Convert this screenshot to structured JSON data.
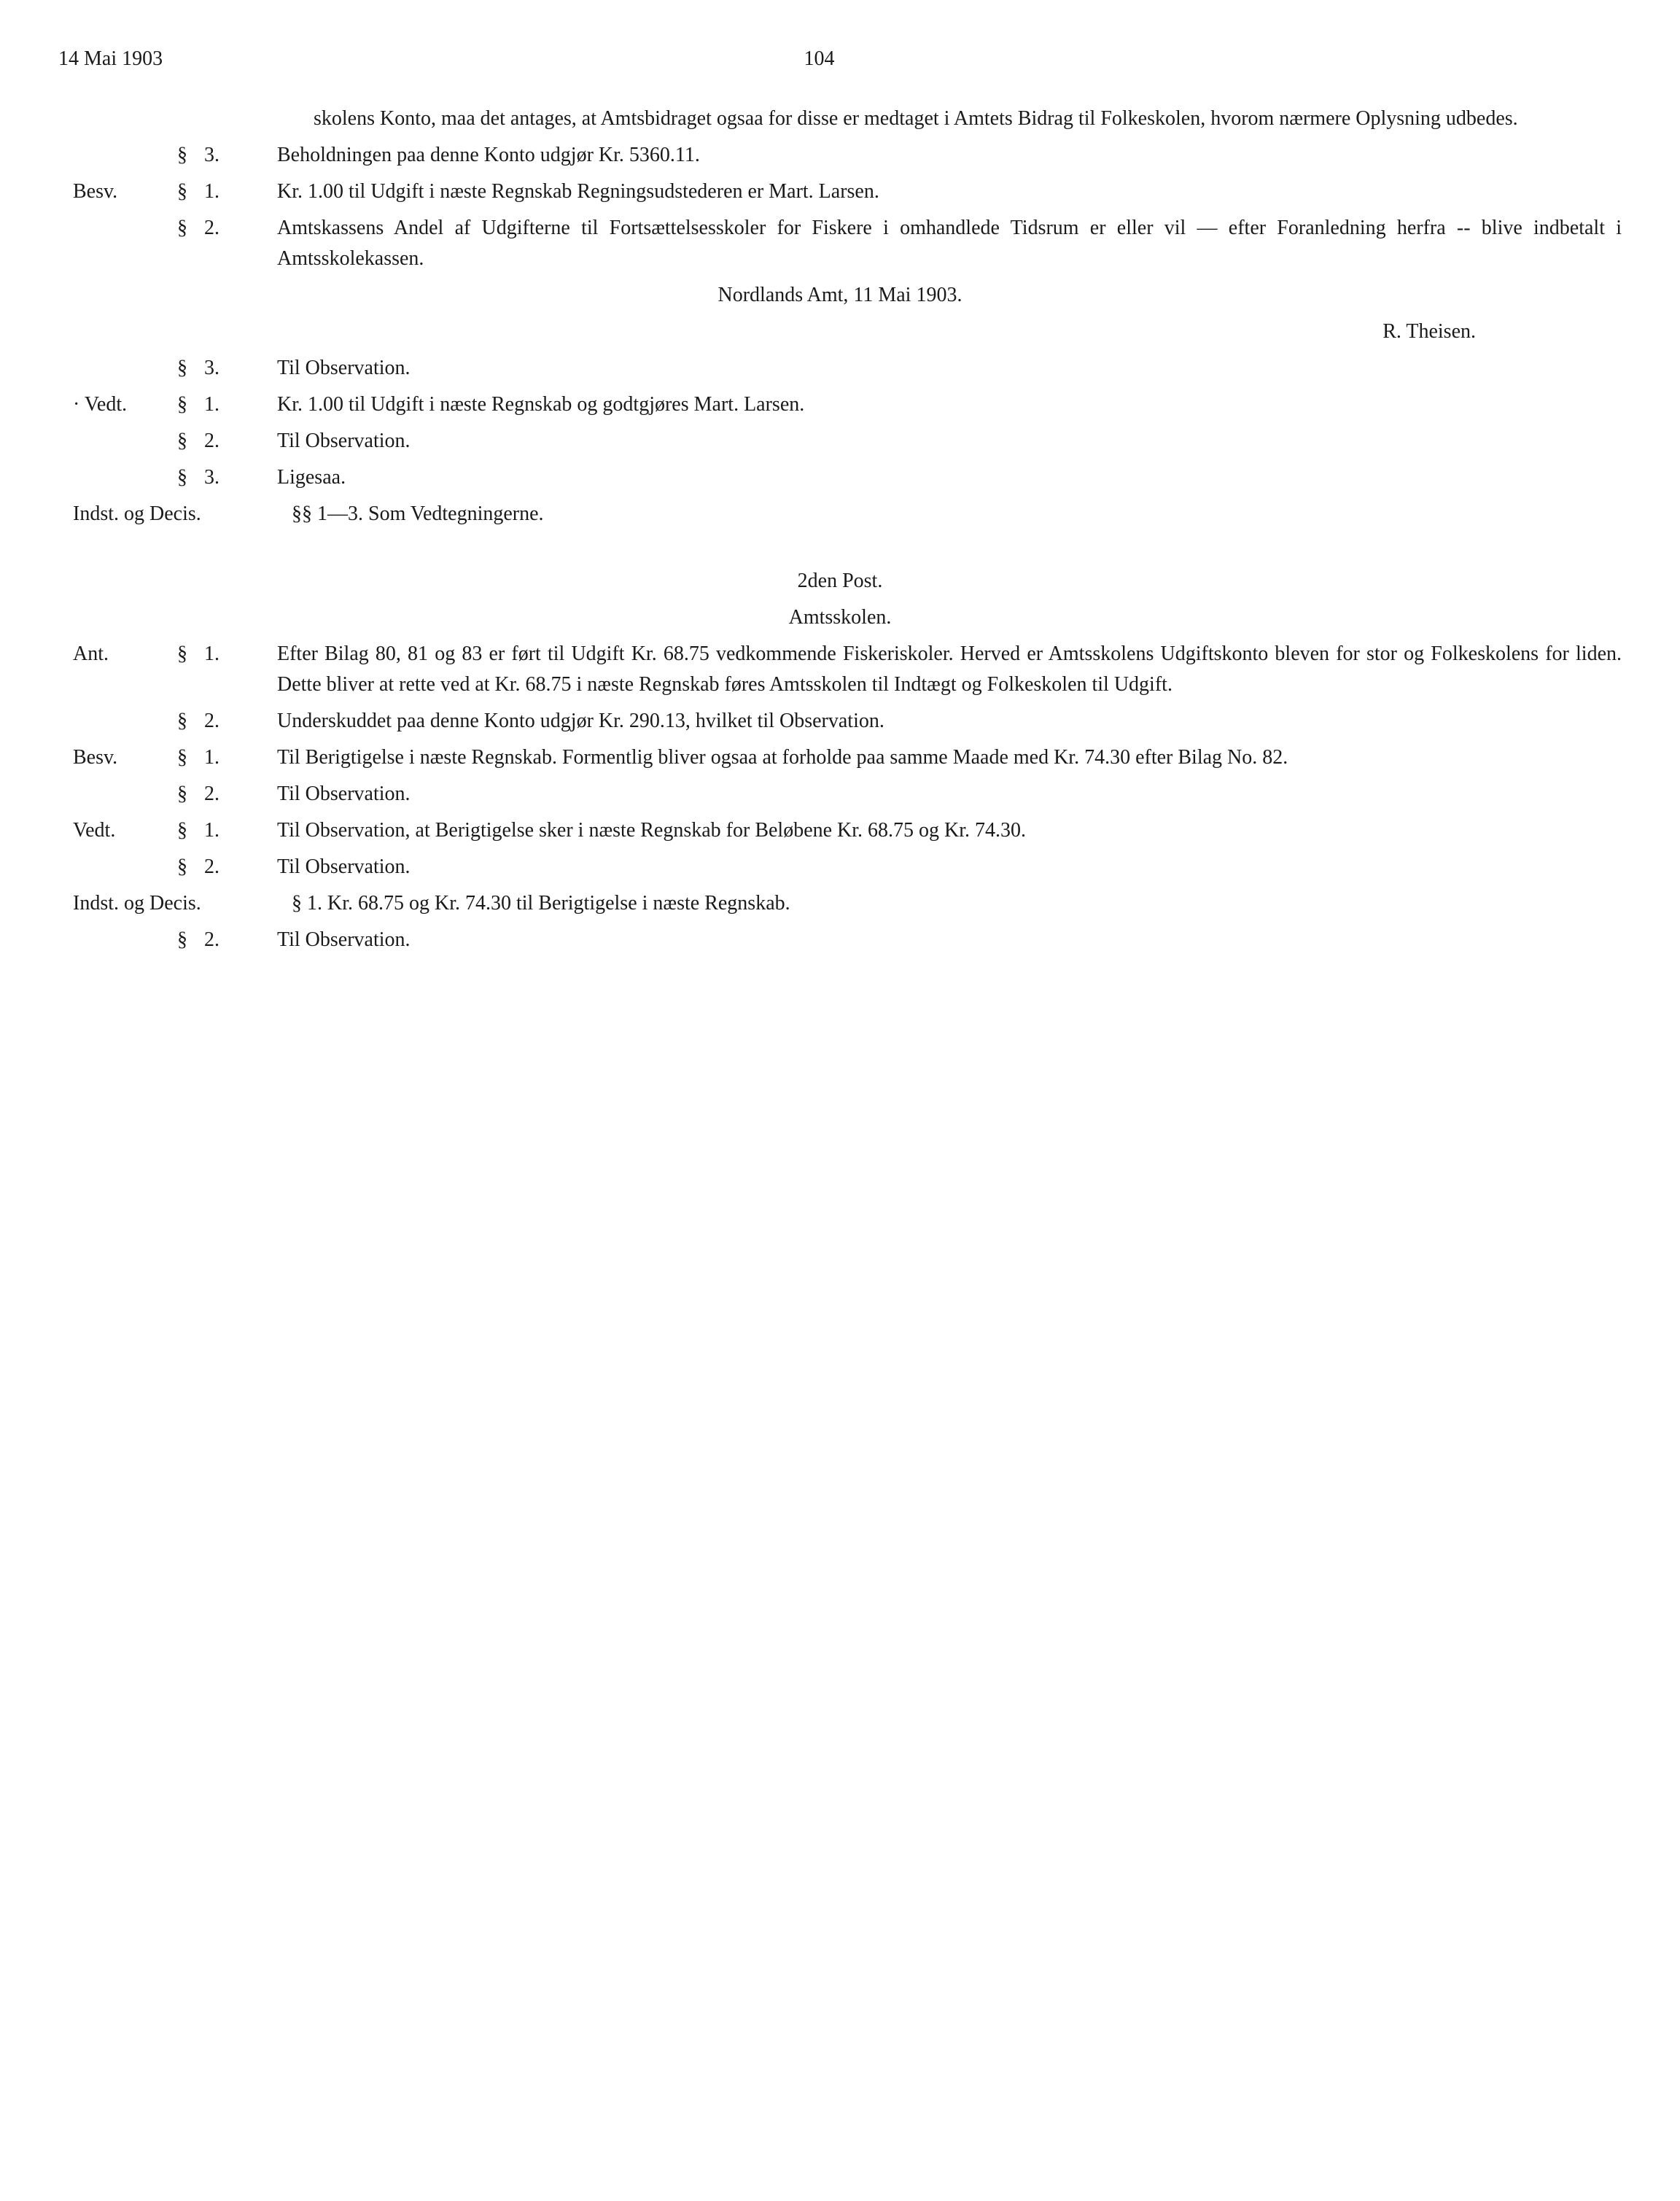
{
  "header": {
    "date": "14 Mai 1903",
    "page": "104"
  },
  "intro": "skolens Konto, maa det antages, at Amtsbidraget ogsaa for disse er medtaget i Amtets Bidrag til Folkeskolen, hvorom nærmere Oplysning udbedes.",
  "rows": [
    {
      "label": "",
      "sec": "§",
      "num": "3.",
      "text": "Beholdningen paa denne Konto udgjør Kr. 5360.11."
    },
    {
      "label": "Besv.",
      "sec": "§",
      "num": "1.",
      "text": "Kr. 1.00 til Udgift i næste Regnskab   Regningsudstederen er Mart. Larsen."
    },
    {
      "label": "",
      "sec": "§",
      "num": "2.",
      "text": "Amtskassens Andel af Udgifterne til Fortsættelsesskoler for Fiskere i omhandlede Tidsrum er eller vil — efter Foranledning herfra -- blive indbetalt i Amtsskolekassen."
    }
  ],
  "amt_line": "Nordlands Amt, 11 Mai 1903.",
  "signature": "R. Theisen.",
  "rows2": [
    {
      "label": "",
      "sec": "§",
      "num": "3.",
      "text": "Til Observation."
    },
    {
      "label": "· Vedt.",
      "sec": "§",
      "num": "1.",
      "text": "Kr. 1.00 til Udgift i næste Regnskab og godtgjøres Mart. Larsen."
    },
    {
      "label": "",
      "sec": "§",
      "num": "2.",
      "text": "Til Observation."
    },
    {
      "label": "",
      "sec": "§",
      "num": "3.",
      "text": "Ligesaa."
    }
  ],
  "indst1": {
    "label": "Indst. og Decis.",
    "text": "§§ 1—3.  Som Vedtegningerne."
  },
  "post2": {
    "title1": "2den Post.",
    "title2": "Amtsskolen.",
    "rows": [
      {
        "label": "Ant.",
        "sec": "§",
        "num": "1.",
        "text": "Efter Bilag 80, 81 og 83 er ført til Udgift Kr. 68.75 vedkommende Fiskeriskoler.  Herved er Amtsskolens Udgiftskonto bleven for stor og Folkeskolens for liden.  Dette bliver at rette ved at Kr. 68.75 i næste Regnskab føres Amtsskolen til Indtægt og Folkeskolen til Udgift."
      },
      {
        "label": "",
        "sec": "§",
        "num": "2.",
        "text": "Underskuddet paa denne Konto udgjør Kr. 290.13, hvilket til Observation."
      },
      {
        "label": "Besv.",
        "sec": "§",
        "num": "1.",
        "text": "Til Berigtigelse i næste Regnskab.  Formentlig bliver ogsaa at forholde paa samme Maade med Kr. 74.30 efter Bilag No. 82."
      },
      {
        "label": "",
        "sec": "§",
        "num": "2.",
        "text": "Til Observation."
      },
      {
        "label": "Vedt.",
        "sec": "§",
        "num": "1.",
        "text": "Til Observation, at Berigtigelse sker i næste Regnskab for Beløbene Kr. 68.75 og Kr. 74.30."
      },
      {
        "label": "",
        "sec": "§",
        "num": "2.",
        "text": "Til Observation."
      }
    ],
    "indst": {
      "label": "Indst. og Decis.",
      "text": "§ 1.  Kr. 68.75 og Kr. 74.30  til Berigtigelse i næste Regnskab."
    },
    "final": {
      "label": "",
      "sec": "§",
      "num": "2.",
      "text": "Til Observation."
    }
  }
}
